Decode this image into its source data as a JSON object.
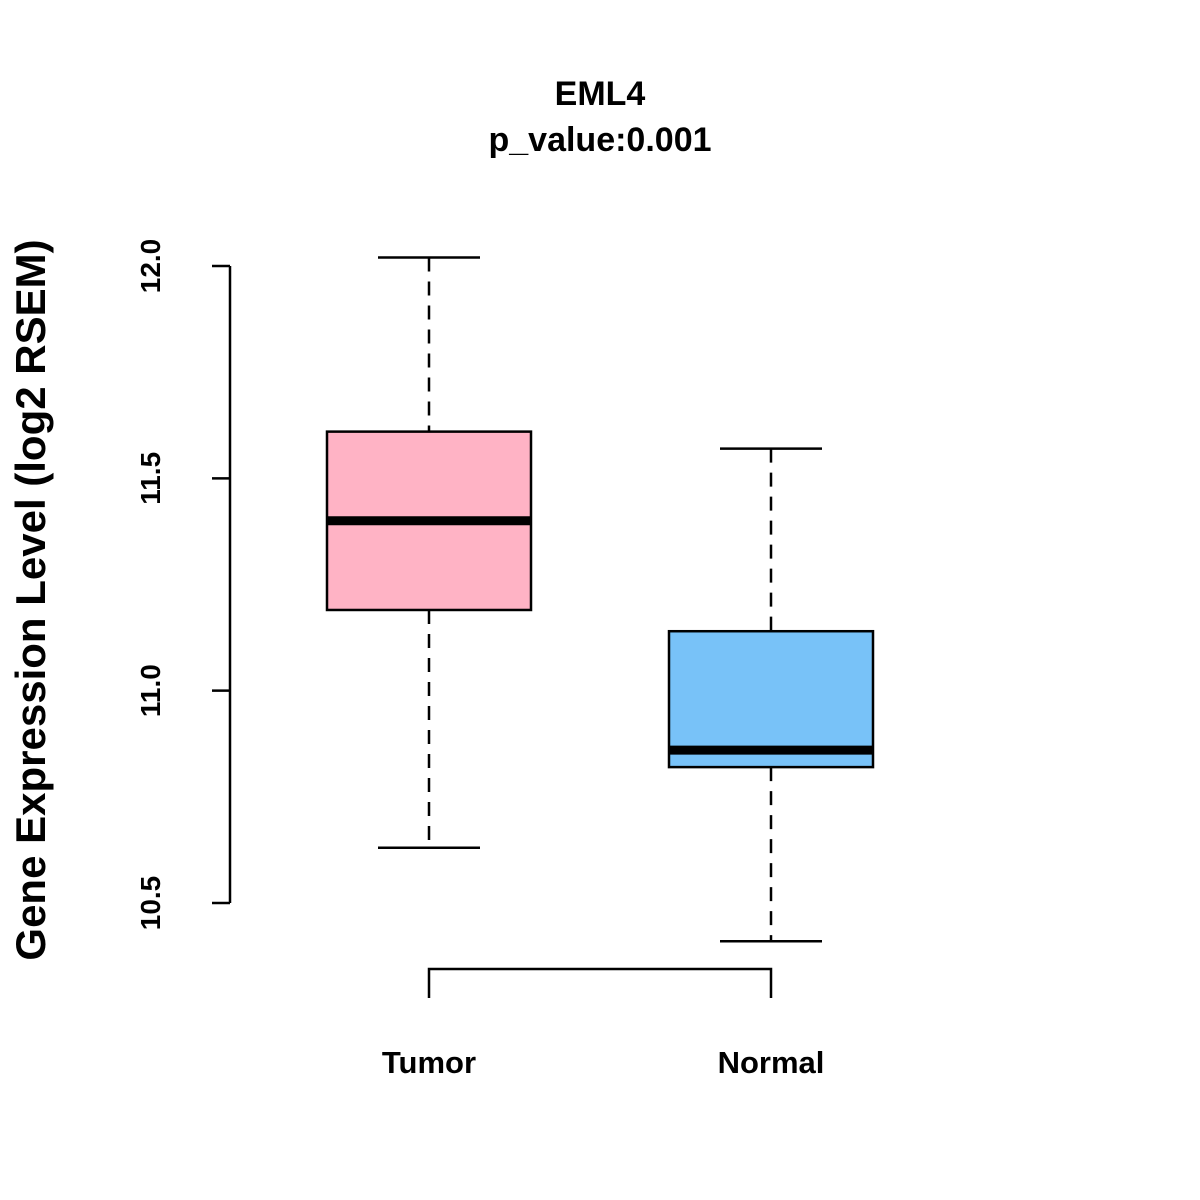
{
  "chart_data": {
    "type": "box",
    "title": "EML4",
    "subtitle": "p_value:0.001",
    "xlabel": "",
    "ylabel": "Gene Expression Level (log2 RSEM)",
    "ylim": [
      10.5,
      12.0
    ],
    "yticks": [
      "10.5",
      "11.0",
      "11.5",
      "12.0"
    ],
    "grid": false,
    "categories": [
      "Tumor",
      "Normal"
    ],
    "series": [
      {
        "name": "Tumor",
        "color": "#FFB3C5",
        "whisker_low": 10.63,
        "q1": 11.19,
        "median": 11.4,
        "q3": 11.61,
        "whisker_high": 12.02
      },
      {
        "name": "Normal",
        "color": "#78C2F8",
        "whisker_low": 10.41,
        "q1": 10.82,
        "median": 10.86,
        "q3": 11.14,
        "whisker_high": 11.57
      }
    ],
    "annotations": [
      {
        "type": "bracket",
        "between": [
          "Tumor",
          "Normal"
        ]
      }
    ]
  }
}
